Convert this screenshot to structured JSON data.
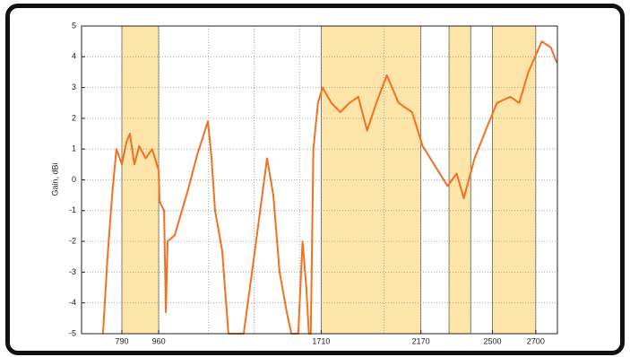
{
  "chart_data": {
    "type": "line",
    "y_label": "Gain, dBi",
    "xlim": [
      604,
      2800
    ],
    "ylim": [
      -5,
      5
    ],
    "xticks": [
      790,
      960,
      1710,
      2170,
      2500,
      2700
    ],
    "yticks": [
      -5,
      -4,
      -3,
      -2,
      -1,
      0,
      1,
      2,
      3,
      4,
      5
    ],
    "x_grid_lines": [
      1190,
      1400,
      1610,
      2000,
      2300,
      2400
    ],
    "grid": true,
    "bands": [
      [
        790,
        960
      ],
      [
        1710,
        2170
      ],
      [
        2300,
        2400
      ],
      [
        2500,
        2700
      ]
    ],
    "band_color": "#fde5a9",
    "series": [
      {
        "name": "Gain",
        "color": "#f37021",
        "x": [
          703,
          724,
          745,
          765,
          790,
          810,
          827,
          848,
          870,
          900,
          930,
          960,
          964,
          985,
          993,
          1001,
          1034,
          1096,
          1137,
          1187,
          1203,
          1220,
          1253,
          1282,
          1352,
          1400,
          1460,
          1489,
          1518,
          1551,
          1572,
          1604,
          1624,
          1641,
          1653,
          1662,
          1674,
          1695,
          1716,
          1757,
          1798,
          1840,
          1881,
          1922,
          1964,
          2013,
          2067,
          2129,
          2178,
          2231,
          2293,
          2335,
          2368,
          2418,
          2480,
          2521,
          2583,
          2624,
          2666,
          2728,
          2770,
          2798
        ],
        "values": [
          -5,
          -2.5,
          -0.5,
          1,
          0.5,
          1.2,
          1.5,
          0.5,
          1.1,
          0.7,
          1.0,
          0.3,
          -0.7,
          -1,
          -4.3,
          -2,
          -1.8,
          -0.3,
          0.8,
          1.9,
          0.8,
          -1,
          -2.3,
          -5,
          -5,
          -2.5,
          0.7,
          -0.5,
          -3,
          -4.3,
          -5,
          -5,
          -2,
          -3.5,
          -5,
          -5,
          1,
          2.5,
          3,
          2.5,
          2.2,
          2.5,
          2.7,
          1.6,
          2.5,
          3.4,
          2.5,
          2.2,
          1.1,
          0.5,
          -0.2,
          0.2,
          -0.6,
          0.7,
          1.8,
          2.5,
          2.7,
          2.5,
          3.5,
          4.5,
          4.3,
          3.8
        ]
      }
    ]
  }
}
